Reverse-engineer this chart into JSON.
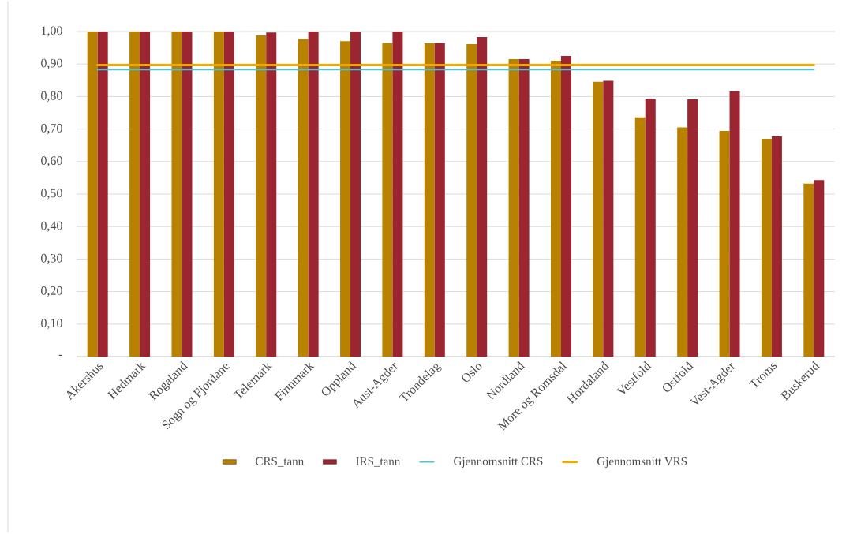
{
  "chart_data": {
    "type": "bar",
    "categories": [
      "Akershus",
      "Hedmark",
      "Rogaland",
      "Sogn og Fjordane",
      "Telemark",
      "Finnmark",
      "Oppland",
      "Aust-Agder",
      "Trondelag",
      "Oslo",
      "Nordland",
      "More og Romsdal",
      "Hordaland",
      "Vestfold",
      "Ostfold",
      "Vest-Agder",
      "Troms",
      "Buskerud"
    ],
    "series": [
      {
        "name": "CRS_tann",
        "color": "#b88200",
        "values": [
          1.0,
          1.0,
          1.0,
          1.0,
          0.988,
          0.977,
          0.97,
          0.965,
          0.964,
          0.961,
          0.915,
          0.91,
          0.845,
          0.736,
          0.705,
          0.694,
          0.67,
          0.532
        ]
      },
      {
        "name": "IRS_tann",
        "color": "#9b2530",
        "values": [
          1.0,
          1.0,
          1.0,
          1.0,
          0.997,
          1.0,
          1.0,
          1.0,
          0.964,
          0.983,
          0.915,
          0.925,
          0.848,
          0.793,
          0.791,
          0.816,
          0.677,
          0.543
        ]
      },
      {
        "name": "Gjennomsnitt CRS",
        "type": "line",
        "color": "#5bbdc9",
        "values": [
          0.883,
          0.883,
          0.883,
          0.883,
          0.883,
          0.883,
          0.883,
          0.883,
          0.883,
          0.883,
          0.883,
          0.883,
          0.883,
          0.883,
          0.883,
          0.883,
          0.883,
          0.883
        ]
      },
      {
        "name": "Gjennomsnitt VRS",
        "type": "line",
        "color": "#f2a900",
        "values": [
          0.897,
          0.897,
          0.897,
          0.897,
          0.897,
          0.897,
          0.897,
          0.897,
          0.897,
          0.897,
          0.897,
          0.897,
          0.897,
          0.897,
          0.897,
          0.897,
          0.897,
          0.897
        ]
      }
    ],
    "ylim": [
      0,
      1
    ],
    "yticks": [
      {
        "value": 0,
        "label": "-"
      },
      {
        "value": 0.1,
        "label": "0,10"
      },
      {
        "value": 0.2,
        "label": "0,20"
      },
      {
        "value": 0.3,
        "label": "0,30"
      },
      {
        "value": 0.4,
        "label": "0,40"
      },
      {
        "value": 0.5,
        "label": "0,50"
      },
      {
        "value": 0.6,
        "label": "0,60"
      },
      {
        "value": 0.7,
        "label": "0,70"
      },
      {
        "value": 0.8,
        "label": "0,80"
      },
      {
        "value": 0.9,
        "label": "0,90"
      },
      {
        "value": 1.0,
        "label": "1,00"
      }
    ],
    "grid": "y",
    "legend": "bottom"
  }
}
